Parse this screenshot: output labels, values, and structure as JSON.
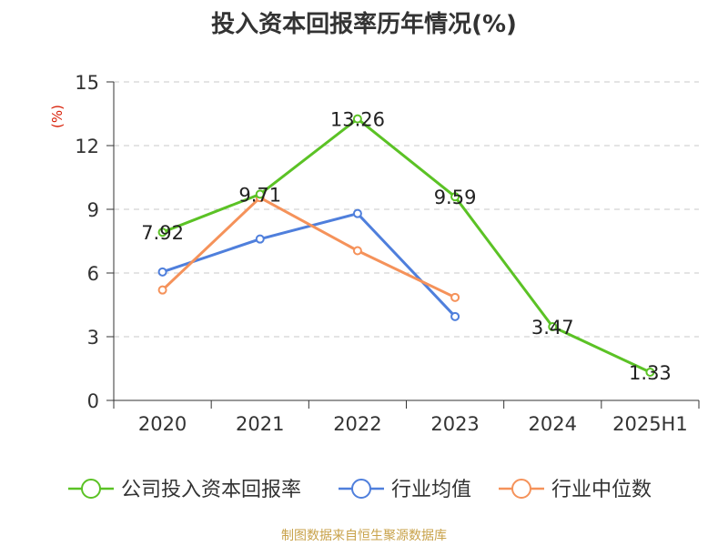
{
  "title": "投入资本回报率历年情况(%)",
  "source": "制图数据来自恒生聚源数据库",
  "chart_data": {
    "type": "line",
    "title": "投入资本回报率历年情况(%)",
    "ylabel": "(%)",
    "categories": [
      "2020",
      "2021",
      "2022",
      "2023",
      "2024",
      "2025H1"
    ],
    "ylim": [
      0,
      15
    ],
    "yticks": [
      0,
      3,
      6,
      9,
      12,
      15
    ],
    "grid": true,
    "legend_position": "bottom",
    "series": [
      {
        "name": "公司投入资本回报率",
        "color": "#5bc225",
        "values": [
          7.92,
          9.71,
          13.26,
          9.59,
          3.47,
          1.33
        ],
        "labels": [
          "7.92",
          "9.71",
          "13.26",
          "9.59",
          "3.47",
          "1.33"
        ]
      },
      {
        "name": "行业均值",
        "color": "#4f7fdc",
        "values": [
          6.05,
          7.6,
          8.8,
          3.95,
          null,
          null
        ]
      },
      {
        "name": "行业中位数",
        "color": "#f5925a",
        "values": [
          5.2,
          9.55,
          7.05,
          4.85,
          null,
          null
        ]
      }
    ]
  }
}
